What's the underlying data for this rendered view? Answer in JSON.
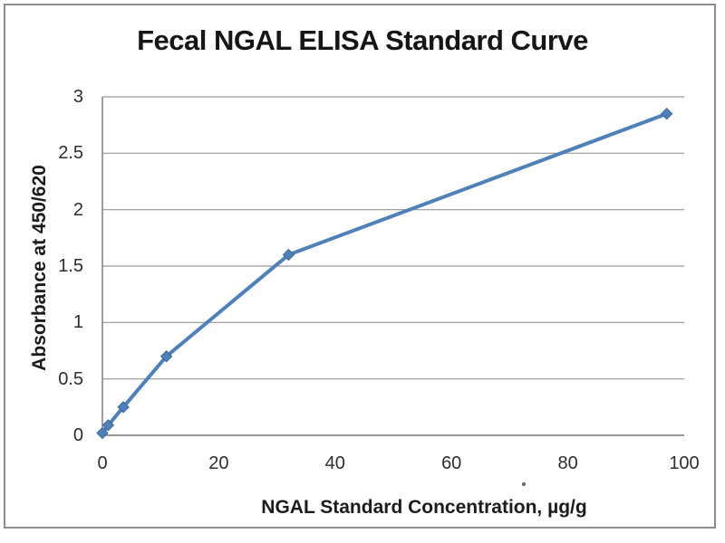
{
  "chart_data": {
    "type": "line",
    "title": "Fecal NGAL ELISA Standard Curve",
    "xlabel": "NGAL Standard Concentration, µg/g",
    "ylabel": "Absorbance at 450/620",
    "x": [
      0,
      1,
      3.6,
      11,
      32,
      97
    ],
    "y": [
      0.02,
      0.09,
      0.25,
      0.7,
      1.6,
      2.85
    ],
    "xlim": [
      0,
      100
    ],
    "ylim": [
      0,
      3
    ],
    "xticks": [
      0,
      20,
      40,
      60,
      80,
      100
    ],
    "yticks": [
      0,
      0.5,
      1,
      1.5,
      2,
      2.5,
      3
    ],
    "grid": "horizontal",
    "legend": "none",
    "marker": "diamond",
    "colors": {
      "line": "#4E80BC",
      "marker_fill": "#4E80BC",
      "marker_stroke": "#3C6899",
      "grid": "#969696",
      "axis": "#7f7f7f",
      "frame_border": "#8d8d8d",
      "title_text": "#161616",
      "tick_text": "#2d2d2d"
    }
  }
}
